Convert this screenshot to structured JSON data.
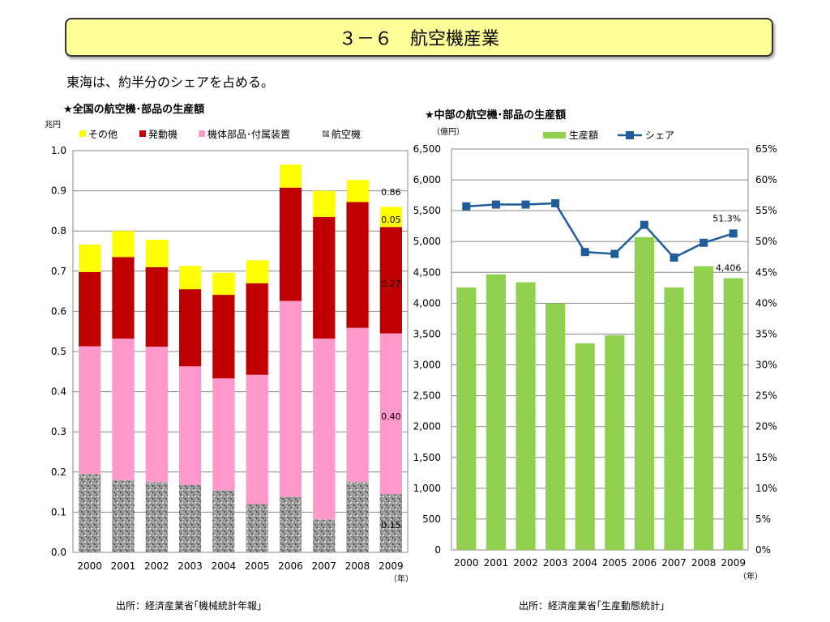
{
  "page": {
    "title": "３－６　航空機産業",
    "subtitle": "東海は、約半分のシェアを占める。",
    "left_heading": "★全国の航空機･部品の生産額",
    "right_heading": "★中部の航空機･部品の生産額",
    "left_source": "出所：経済産業省｢機械統計年報｣",
    "right_source": "出所：経済産業省｢生産動態統計｣"
  },
  "chart_data": [
    {
      "type": "bar",
      "stacked": true,
      "unit_label": "兆円",
      "x_unit": "（年）",
      "categories": [
        "2000",
        "2001",
        "2002",
        "2003",
        "2004",
        "2005",
        "2006",
        "2007",
        "2008",
        "2009"
      ],
      "ylim": [
        0,
        1.0
      ],
      "yticks": [
        "0.0",
        "0.1",
        "0.2",
        "0.3",
        "0.4",
        "0.5",
        "0.6",
        "0.7",
        "0.8",
        "0.9",
        "1.0"
      ],
      "grid": true,
      "legend_position": "top",
      "series": [
        {
          "name": "航空機",
          "color": "#a0a0a0",
          "pattern": "speckle",
          "values": [
            0.195,
            0.18,
            0.175,
            0.168,
            0.155,
            0.12,
            0.138,
            0.082,
            0.175,
            0.145
          ]
        },
        {
          "name": "機体部品･付属装置",
          "color": "#ff99cc",
          "values": [
            0.318,
            0.352,
            0.337,
            0.295,
            0.278,
            0.322,
            0.488,
            0.45,
            0.384,
            0.4
          ]
        },
        {
          "name": "発動機",
          "color": "#c00000",
          "values": [
            0.185,
            0.203,
            0.198,
            0.192,
            0.208,
            0.228,
            0.282,
            0.303,
            0.313,
            0.265
          ]
        },
        {
          "name": "その他",
          "color": "#ffff00",
          "values": [
            0.068,
            0.065,
            0.068,
            0.058,
            0.055,
            0.057,
            0.057,
            0.065,
            0.055,
            0.05
          ]
        }
      ],
      "legend_order": [
        "その他",
        "発動機",
        "機体部品･付属装置",
        "航空機"
      ],
      "data_labels": [
        "0.86",
        "0.05",
        "0.27",
        "0.40",
        "0.15"
      ]
    },
    {
      "type": "bar",
      "secondary_type": "line",
      "unit_label": "（億円）",
      "x_unit": "（年）",
      "categories": [
        "2000",
        "2001",
        "2002",
        "2003",
        "2004",
        "2005",
        "2006",
        "2007",
        "2008",
        "2009"
      ],
      "ylim": [
        0,
        6500
      ],
      "yticks": [
        "0",
        "500",
        "1,000",
        "1,500",
        "2,000",
        "2,500",
        "3,000",
        "3,500",
        "4,000",
        "4,500",
        "5,000",
        "5,500",
        "6,000",
        "6,500"
      ],
      "y2lim": [
        0,
        65
      ],
      "y2ticks": [
        "0%",
        "5%",
        "10%",
        "15%",
        "20%",
        "25%",
        "30%",
        "35%",
        "40%",
        "45%",
        "50%",
        "55%",
        "60%",
        "65%"
      ],
      "grid": true,
      "legend_position": "top",
      "series": [
        {
          "name": "生産額",
          "color": "#92d050",
          "values": [
            4255,
            4470,
            4340,
            3995,
            3350,
            3480,
            5070,
            4255,
            4600,
            4406
          ]
        },
        {
          "name": "シェア",
          "color": "#1f5c99",
          "axis": "right",
          "values": [
            55.7,
            56.0,
            56.0,
            56.2,
            48.3,
            48.0,
            52.7,
            47.4,
            49.8,
            51.3
          ]
        }
      ],
      "data_labels": [
        "51.3%",
        "4,406"
      ]
    }
  ]
}
